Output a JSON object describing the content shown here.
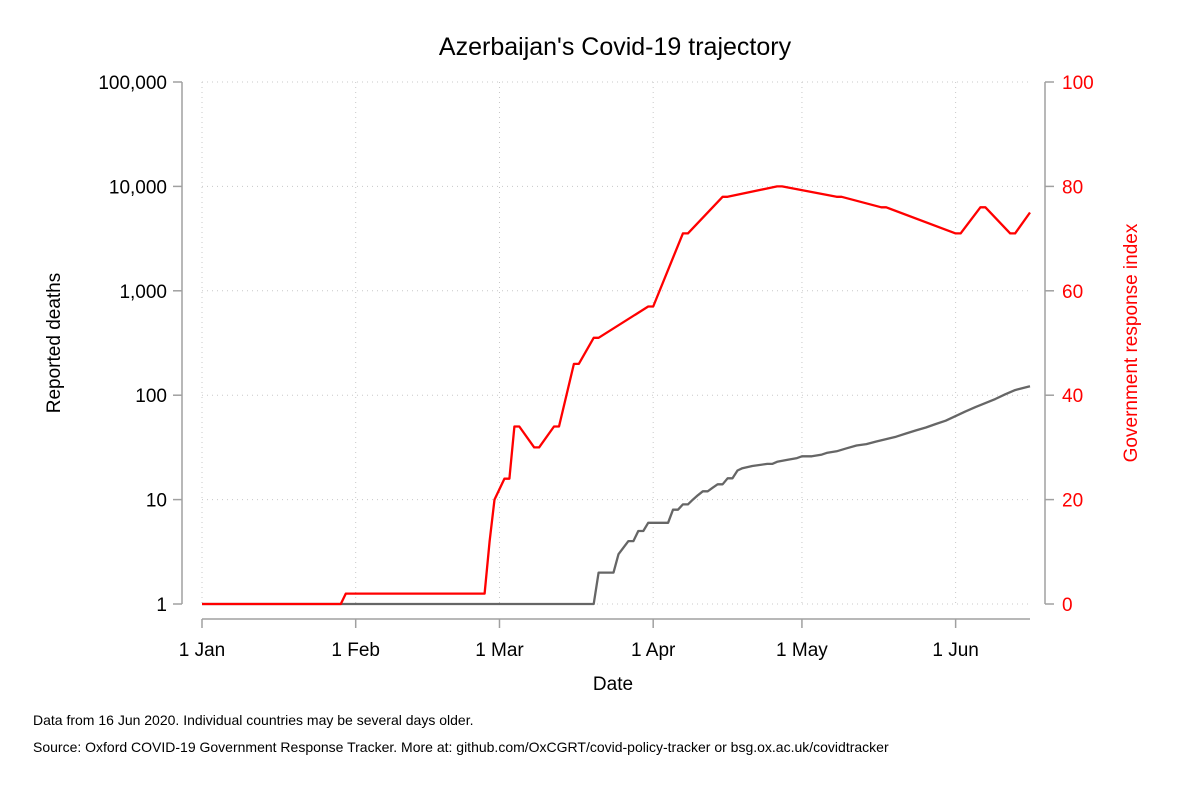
{
  "chart_data": {
    "type": "line",
    "title": "Azerbaijan's Covid-19 trajectory",
    "xlabel": "Date",
    "ylabel_left": "Reported deaths",
    "ylabel_right": "Government response index",
    "x_ticks": [
      "1 Jan",
      "1 Feb",
      "1 Mar",
      "1 Apr",
      "1 May",
      "1 Jun"
    ],
    "x_tick_dates": [
      "2020-01-01",
      "2020-02-01",
      "2020-03-01",
      "2020-04-01",
      "2020-05-01",
      "2020-06-01"
    ],
    "x_range": [
      "2020-01-01",
      "2020-06-16"
    ],
    "y_left": {
      "scale": "log",
      "range": [
        1,
        100000
      ],
      "ticks": [
        1,
        10,
        100,
        1000,
        10000,
        100000
      ],
      "tick_labels": [
        "1",
        "10",
        "100",
        "1,000",
        "10,000",
        "100,000"
      ]
    },
    "y_right": {
      "scale": "linear",
      "range": [
        0,
        100
      ],
      "ticks": [
        0,
        20,
        40,
        60,
        80,
        100
      ],
      "tick_labels": [
        "0",
        "20",
        "40",
        "60",
        "80",
        "100"
      ]
    },
    "grid": true,
    "series": [
      {
        "axis": "left",
        "color": "#666666",
        "x": [
          "2020-01-01",
          "2020-03-20",
          "2020-03-21",
          "2020-03-24",
          "2020-03-25",
          "2020-03-27",
          "2020-03-28",
          "2020-03-29",
          "2020-03-30",
          "2020-03-31",
          "2020-04-01",
          "2020-04-04",
          "2020-04-05",
          "2020-04-06",
          "2020-04-07",
          "2020-04-08",
          "2020-04-09",
          "2020-04-10",
          "2020-04-11",
          "2020-04-12",
          "2020-04-13",
          "2020-04-14",
          "2020-04-15",
          "2020-04-16",
          "2020-04-17",
          "2020-04-18",
          "2020-04-19",
          "2020-04-21",
          "2020-04-24",
          "2020-04-25",
          "2020-04-26",
          "2020-04-28",
          "2020-04-30",
          "2020-05-01",
          "2020-05-03",
          "2020-05-05",
          "2020-05-06",
          "2020-05-08",
          "2020-05-10",
          "2020-05-12",
          "2020-05-14",
          "2020-05-16",
          "2020-05-18",
          "2020-05-20",
          "2020-05-22",
          "2020-05-24",
          "2020-05-26",
          "2020-05-28",
          "2020-05-30",
          "2020-06-01",
          "2020-06-03",
          "2020-06-05",
          "2020-06-07",
          "2020-06-09",
          "2020-06-11",
          "2020-06-13",
          "2020-06-16"
        ],
        "y": [
          1,
          1,
          2,
          2,
          3,
          4,
          4,
          5,
          5,
          6,
          6,
          6,
          8,
          8,
          9,
          9,
          10,
          11,
          12,
          12,
          13,
          14,
          14,
          16,
          16,
          19,
          20,
          21,
          22,
          22,
          23,
          24,
          25,
          26,
          26,
          27,
          28,
          29,
          31,
          33,
          34,
          36,
          38,
          40,
          43,
          46,
          49,
          53,
          57,
          63,
          70,
          77,
          84,
          92,
          102,
          112,
          122
        ]
      },
      {
        "axis": "right",
        "color": "#ff0000",
        "x": [
          "2020-01-01",
          "2020-01-29",
          "2020-01-30",
          "2020-02-27",
          "2020-02-28",
          "2020-02-29",
          "2020-03-02",
          "2020-03-03",
          "2020-03-04",
          "2020-03-05",
          "2020-03-08",
          "2020-03-09",
          "2020-03-12",
          "2020-03-13",
          "2020-03-16",
          "2020-03-17",
          "2020-03-20",
          "2020-03-21",
          "2020-03-31",
          "2020-04-01",
          "2020-04-07",
          "2020-04-08",
          "2020-04-15",
          "2020-04-16",
          "2020-04-26",
          "2020-04-27",
          "2020-05-08",
          "2020-05-09",
          "2020-05-17",
          "2020-05-18",
          "2020-06-01",
          "2020-06-02",
          "2020-06-06",
          "2020-06-07",
          "2020-06-12",
          "2020-06-13",
          "2020-06-16"
        ],
        "y": [
          0,
          0,
          2,
          2,
          12,
          20,
          24,
          24,
          34,
          34,
          30,
          30,
          34,
          34,
          46,
          46,
          51,
          51,
          57,
          57,
          71,
          71,
          78,
          78,
          80,
          80,
          78,
          78,
          76,
          76,
          71,
          71,
          76,
          76,
          71,
          71,
          75
        ]
      }
    ]
  },
  "footer": {
    "note": "Data from 16 Jun 2020. Individual countries may be several days older.",
    "source": "Source: Oxford COVID-19 Government Response Tracker. More at: github.com/OxCGRT/covid-policy-tracker or bsg.ox.ac.uk/covidtracker"
  }
}
